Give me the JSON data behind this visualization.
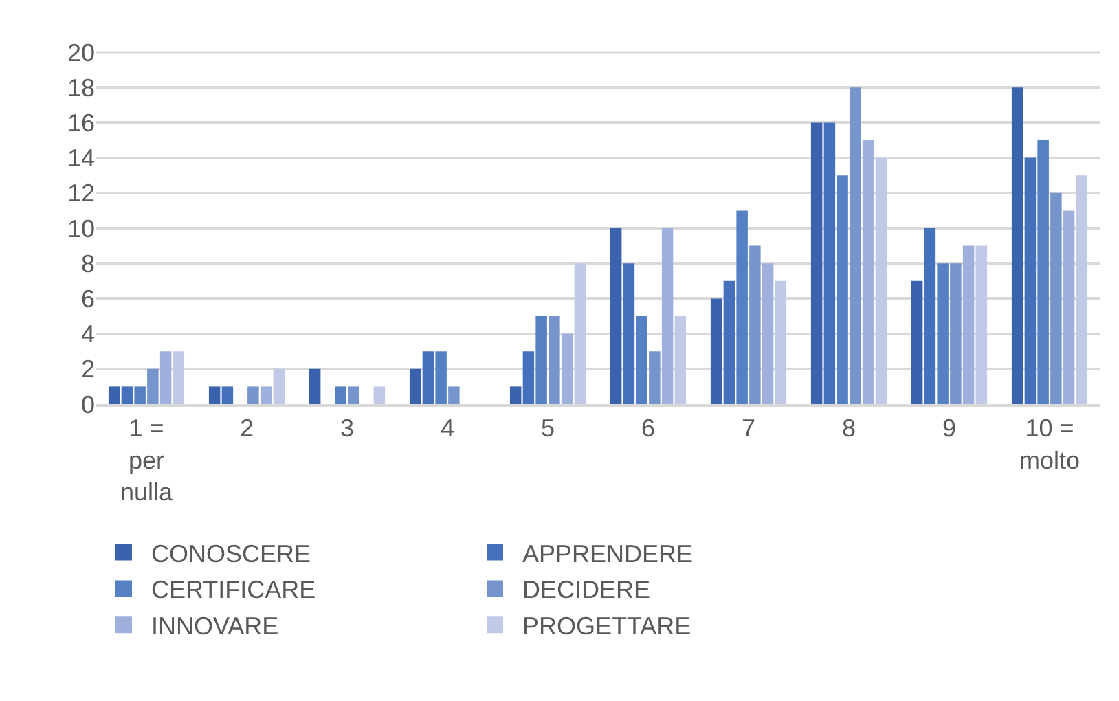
{
  "chart_data": {
    "type": "bar",
    "categories": [
      "1 = per nulla",
      "2",
      "3",
      "4",
      "5",
      "6",
      "7",
      "8",
      "9",
      "10 = molto"
    ],
    "series": [
      {
        "name": "CONOSCERE",
        "color": "#3a62ad",
        "values": [
          1,
          1,
          2,
          2,
          1,
          10,
          6,
          16,
          7,
          18
        ]
      },
      {
        "name": "APPRENDERE",
        "color": "#4571bc",
        "values": [
          1,
          1,
          0,
          3,
          3,
          8,
          7,
          16,
          10,
          14
        ]
      },
      {
        "name": "CERTIFICARE",
        "color": "#5580c4",
        "values": [
          1,
          0,
          1,
          3,
          5,
          5,
          11,
          13,
          8,
          15
        ]
      },
      {
        "name": "DECIDERE",
        "color": "#7695cc",
        "values": [
          2,
          1,
          1,
          1,
          5,
          3,
          9,
          18,
          8,
          12
        ]
      },
      {
        "name": "INNOVARE",
        "color": "#9eb0db",
        "values": [
          3,
          1,
          0,
          0,
          4,
          10,
          8,
          15,
          9,
          11
        ]
      },
      {
        "name": "PROGETTARE",
        "color": "#c0cae6",
        "values": [
          3,
          2,
          1,
          0,
          8,
          5,
          7,
          14,
          9,
          13
        ]
      }
    ],
    "ylim": [
      0,
      20
    ],
    "yticks": [
      0,
      2,
      4,
      6,
      8,
      10,
      12,
      14,
      16,
      18,
      20
    ],
    "grid": true,
    "legend": "bottom"
  }
}
